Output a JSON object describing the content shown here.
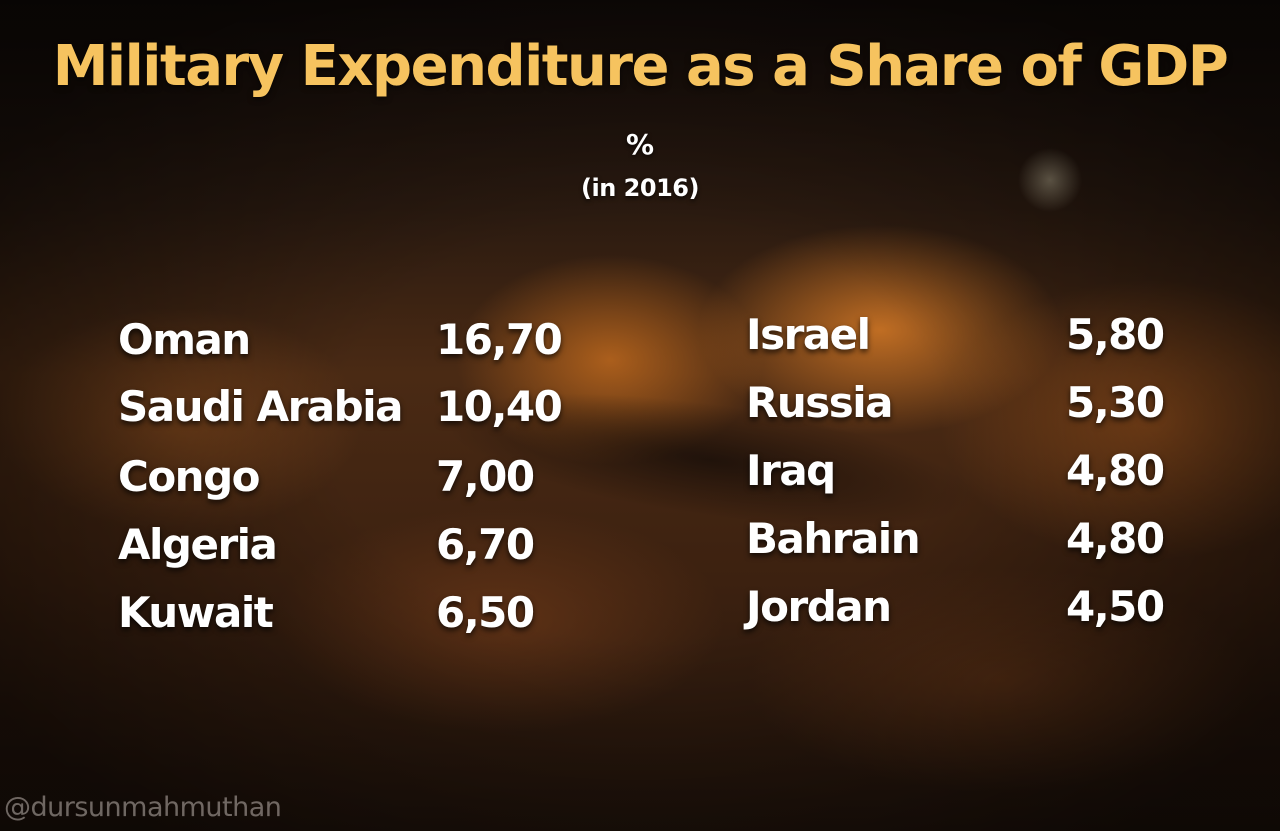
{
  "chart_data": {
    "type": "table",
    "title": "Military Expenditure as a Share of GDP",
    "unit": "%",
    "subtitle": "(in 2016)",
    "columns": [
      {
        "rows": [
          {
            "country": "Oman",
            "value": "16,70"
          },
          {
            "country": "Saudi Arabia",
            "value": "10,40"
          },
          {
            "country": "Congo",
            "value": "7,00"
          },
          {
            "country": "Algeria",
            "value": "6,70"
          },
          {
            "country": "Kuwait",
            "value": "6,50"
          }
        ]
      },
      {
        "rows": [
          {
            "country": "Israel",
            "value": "5,80"
          },
          {
            "country": "Russia",
            "value": "5,30"
          },
          {
            "country": "Iraq",
            "value": "4,80"
          },
          {
            "country": "Bahrain",
            "value": "4,80"
          },
          {
            "country": "Jordan",
            "value": "4,50"
          }
        ]
      }
    ]
  },
  "colors": {
    "title": "#f6c35f",
    "text": "#ffffff",
    "watermark": "#beb4af"
  },
  "watermark": "@dursunmahmuthan"
}
